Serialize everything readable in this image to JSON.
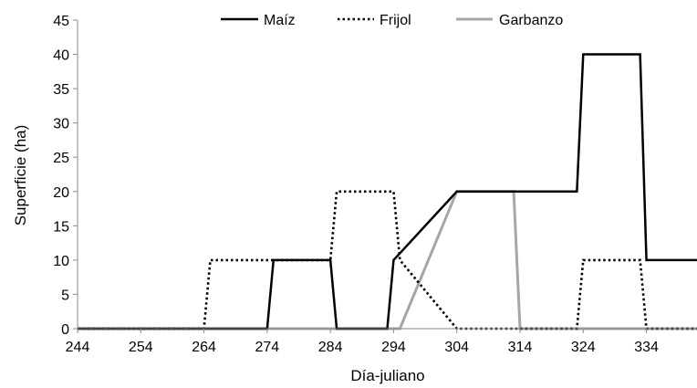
{
  "chart_data": {
    "type": "line",
    "xlabel": "Día-juliano",
    "ylabel": "Superficie (ha)",
    "xlim": [
      244,
      342
    ],
    "ylim": [
      0,
      45
    ],
    "xticks": [
      244,
      254,
      264,
      274,
      284,
      294,
      304,
      314,
      324,
      334
    ],
    "yticks": [
      0,
      5,
      10,
      15,
      20,
      25,
      30,
      35,
      40,
      45
    ],
    "grid": false,
    "legend_position": "top",
    "series": [
      {
        "name": "Maíz",
        "style": "solid",
        "color": "#000000",
        "points": [
          [
            244,
            0
          ],
          [
            274,
            0
          ],
          [
            275,
            10
          ],
          [
            284,
            10
          ],
          [
            285,
            0
          ],
          [
            293,
            0
          ],
          [
            294,
            10
          ],
          [
            304,
            20
          ],
          [
            323,
            20
          ],
          [
            324,
            40
          ],
          [
            333,
            40
          ],
          [
            334,
            10
          ],
          [
            342,
            10
          ]
        ]
      },
      {
        "name": "Frijol",
        "style": "dotted",
        "color": "#000000",
        "points": [
          [
            244,
            0
          ],
          [
            264,
            0
          ],
          [
            265,
            10
          ],
          [
            284,
            10
          ],
          [
            285,
            20
          ],
          [
            294,
            20
          ],
          [
            295,
            10
          ],
          [
            304,
            0
          ],
          [
            323,
            0
          ],
          [
            324,
            10
          ],
          [
            333,
            10
          ],
          [
            334,
            0
          ],
          [
            342,
            0
          ]
        ]
      },
      {
        "name": "Garbanzo",
        "style": "solid",
        "color": "#a6a6a6",
        "points": [
          [
            244,
            0
          ],
          [
            295,
            0
          ],
          [
            304,
            20
          ],
          [
            313,
            20
          ],
          [
            314,
            0
          ],
          [
            342,
            0
          ]
        ]
      }
    ]
  }
}
